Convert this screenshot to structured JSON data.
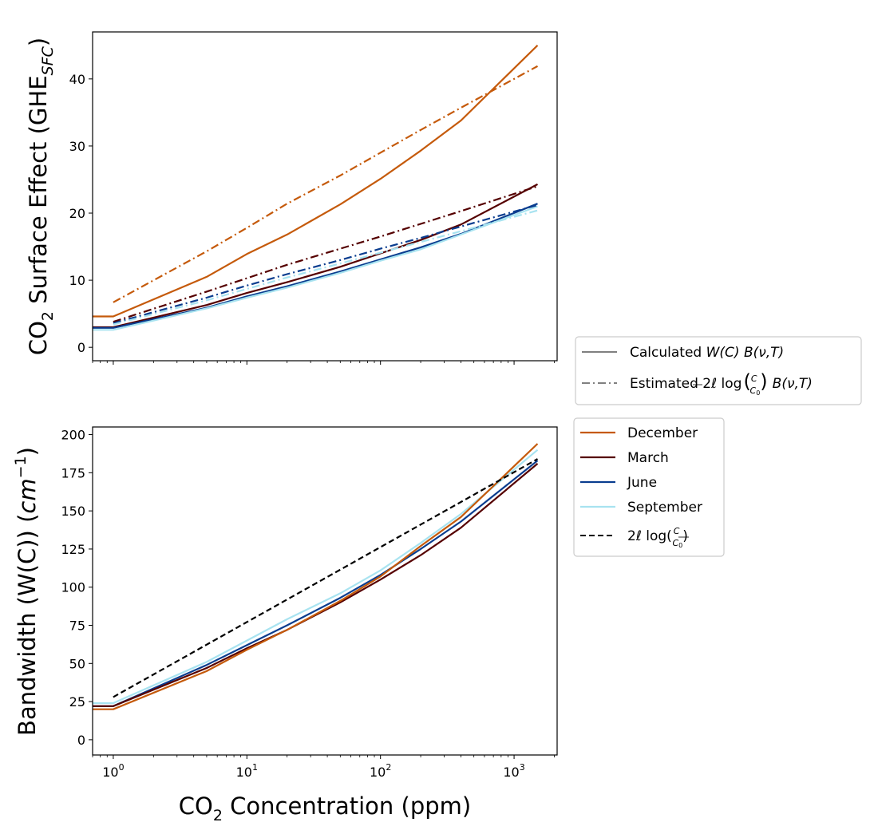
{
  "chart_data": [
    {
      "type": "line",
      "panel": "top",
      "ylabel_main": "CO",
      "ylabel_sub": "2",
      "ylabel_rest": " Surface Effect (GHE",
      "ylabel_subscript": "SFC",
      "ylabel_close": ")",
      "xscale": "log",
      "xlim": [
        0.7,
        2100
      ],
      "ylim": [
        -2,
        47
      ],
      "yticks": [
        0,
        10,
        20,
        30,
        40
      ],
      "legend": {
        "placement": "outside right",
        "entries": [
          {
            "style": "solid",
            "color": "#808080",
            "label_prefix": "Calculated ",
            "label_math": "W(C) B(ν,T)"
          },
          {
            "style": "dashdot",
            "color": "#808080",
            "label_prefix": "Estimated 2ℓ log",
            "label_fraction_num": "C",
            "label_fraction_den": "C",
            "label_fraction_den_sub": "0",
            "label_suffix": "B(ν,T)"
          }
        ]
      },
      "series": [
        {
          "name": "December",
          "kind": "calculated",
          "style": "solid",
          "color": "#c55a0b",
          "x": [
            0.5,
            1,
            5,
            10,
            20,
            50,
            100,
            200,
            400,
            1500
          ],
          "y": [
            4.6,
            4.6,
            10.5,
            13.9,
            16.8,
            21.3,
            25.1,
            29.3,
            33.8,
            45.0
          ]
        },
        {
          "name": "March",
          "kind": "calculated",
          "style": "solid",
          "color": "#550000",
          "x": [
            0.5,
            1,
            5,
            10,
            20,
            50,
            100,
            200,
            400,
            1500
          ],
          "y": [
            3.0,
            3.0,
            6.3,
            8.1,
            9.7,
            12.0,
            14.0,
            16.0,
            18.3,
            24.3
          ]
        },
        {
          "name": "June",
          "kind": "calculated",
          "style": "solid",
          "color": "#0a3d8f",
          "x": [
            0.5,
            1,
            5,
            10,
            20,
            50,
            100,
            200,
            400,
            1500
          ],
          "y": [
            2.9,
            2.9,
            5.9,
            7.6,
            9.1,
            11.3,
            13.1,
            14.9,
            16.9,
            21.4
          ]
        },
        {
          "name": "September",
          "kind": "calculated",
          "style": "solid",
          "color": "#a8e3f0",
          "x": [
            0.5,
            1,
            5,
            10,
            20,
            50,
            100,
            200,
            400,
            1500
          ],
          "y": [
            2.6,
            2.6,
            5.8,
            7.4,
            8.9,
            11.1,
            12.9,
            14.6,
            16.8,
            21.0
          ]
        },
        {
          "name": "December",
          "kind": "estimated",
          "style": "dashdot",
          "color": "#c55a0b",
          "x": [
            1,
            5,
            10,
            20,
            50,
            100,
            200,
            400,
            1500
          ],
          "y": [
            6.7,
            14.3,
            17.8,
            21.4,
            25.6,
            29.0,
            32.4,
            35.7,
            41.9
          ]
        },
        {
          "name": "March",
          "kind": "estimated",
          "style": "dashdot",
          "color": "#550000",
          "x": [
            1,
            5,
            10,
            20,
            50,
            100,
            200,
            400,
            1500
          ],
          "y": [
            3.8,
            8.3,
            10.3,
            12.3,
            14.7,
            16.5,
            18.4,
            20.3,
            24.0
          ]
        },
        {
          "name": "June",
          "kind": "estimated",
          "style": "dashdot",
          "color": "#0a3d8f",
          "x": [
            1,
            5,
            10,
            20,
            50,
            100,
            200,
            400,
            1500
          ],
          "y": [
            3.6,
            7.4,
            9.2,
            10.9,
            13.0,
            14.7,
            16.3,
            18.0,
            21.2
          ]
        },
        {
          "name": "September",
          "kind": "estimated",
          "style": "dashdot",
          "color": "#a8e3f0",
          "x": [
            1,
            5,
            10,
            20,
            50,
            100,
            200,
            400,
            1500
          ],
          "y": [
            3.4,
            7.0,
            8.7,
            10.4,
            12.5,
            14.1,
            15.7,
            17.3,
            20.4
          ]
        }
      ]
    },
    {
      "type": "line",
      "panel": "bottom",
      "xlabel_main": "CO",
      "xlabel_sub": "2",
      "xlabel_rest": " Concentration (ppm)",
      "ylabel_main": "Bandwidth (W(C)) (",
      "ylabel_unit": "cm",
      "ylabel_exp": "−1",
      "ylabel_close": ")",
      "xscale": "log",
      "xlim": [
        0.7,
        2100
      ],
      "ylim": [
        -10,
        205
      ],
      "yticks": [
        0,
        25,
        50,
        75,
        100,
        125,
        150,
        175,
        200
      ],
      "xticks": [
        {
          "value": 1,
          "base": "10",
          "exp": "0"
        },
        {
          "value": 10,
          "base": "10",
          "exp": "1"
        },
        {
          "value": 100,
          "base": "10",
          "exp": "2"
        },
        {
          "value": 1000,
          "base": "10",
          "exp": "3"
        }
      ],
      "legend": {
        "placement": "outside right",
        "entries": [
          {
            "label": "December",
            "style": "solid",
            "color": "#c55a0b"
          },
          {
            "label": "March",
            "style": "solid",
            "color": "#550000"
          },
          {
            "label": "June",
            "style": "solid",
            "color": "#0a3d8f"
          },
          {
            "label": "September",
            "style": "solid",
            "color": "#a8e3f0"
          },
          {
            "label_prefix": "2ℓ log(",
            "label_fraction_num": "C",
            "label_fraction_den": "C",
            "label_fraction_den_sub": "0",
            "label_suffix": ")",
            "style": "dashed",
            "color": "#000000"
          }
        ]
      },
      "series": [
        {
          "name": "September",
          "style": "solid",
          "color": "#a8e3f0",
          "x": [
            0.5,
            1,
            5,
            10,
            20,
            50,
            100,
            200,
            400,
            1500
          ],
          "y": [
            24,
            24,
            51,
            65,
            79,
            96,
            111,
            129,
            148,
            190
          ]
        },
        {
          "name": "June",
          "style": "solid",
          "color": "#0a3d8f",
          "x": [
            0.5,
            1,
            5,
            10,
            20,
            50,
            100,
            200,
            400,
            1500
          ],
          "y": [
            22,
            22,
            49,
            62,
            75,
            93,
            108,
            125,
            143,
            183
          ]
        },
        {
          "name": "March",
          "style": "solid",
          "color": "#550000",
          "x": [
            0.5,
            1,
            5,
            10,
            20,
            50,
            100,
            200,
            400,
            1500
          ],
          "y": [
            22,
            22,
            47,
            60,
            72,
            90,
            105,
            121,
            139,
            181
          ]
        },
        {
          "name": "December",
          "style": "solid",
          "color": "#c55a0b",
          "x": [
            0.5,
            1,
            5,
            10,
            20,
            50,
            100,
            200,
            400,
            1500
          ],
          "y": [
            20,
            20,
            45,
            59,
            72,
            91,
            107,
            127,
            146,
            194
          ]
        },
        {
          "name": "2ℓ log(C/C0)",
          "style": "dashed",
          "color": "#000000",
          "x": [
            1,
            1500
          ],
          "y": [
            28,
            184
          ]
        }
      ]
    }
  ]
}
